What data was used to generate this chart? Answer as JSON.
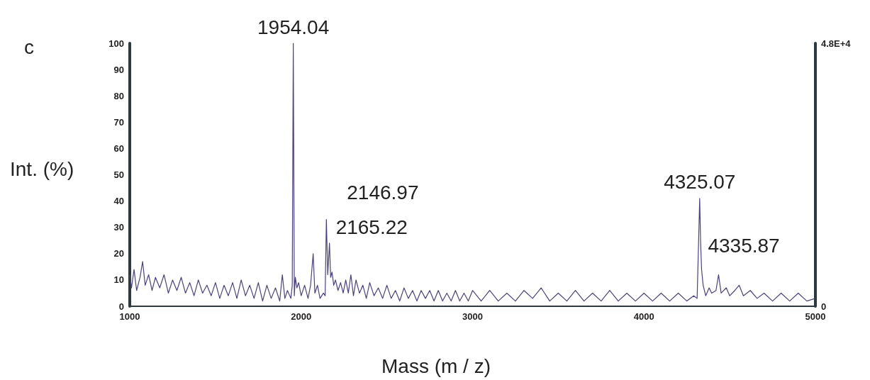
{
  "chart_data": {
    "type": "line",
    "xlabel": "Mass (m / z)",
    "ylabel": "Int. (%)",
    "annotations": [
      "c",
      {
        "text": "1954.04",
        "x": 1954,
        "y": 100
      },
      {
        "text": "2146.97",
        "x": 2147,
        "y": 33
      },
      {
        "text": "2165.22",
        "x": 2165,
        "y": 24
      },
      {
        "text": "4325.07",
        "x": 4325,
        "y": 41
      },
      {
        "text": "4335.87",
        "x": 4336,
        "y": 14
      }
    ],
    "x": [
      1000,
      1010,
      1025,
      1040,
      1060,
      1075,
      1090,
      1110,
      1130,
      1150,
      1175,
      1200,
      1225,
      1250,
      1275,
      1300,
      1325,
      1350,
      1375,
      1400,
      1425,
      1450,
      1475,
      1500,
      1525,
      1550,
      1575,
      1600,
      1625,
      1650,
      1675,
      1700,
      1725,
      1750,
      1775,
      1800,
      1825,
      1850,
      1875,
      1890,
      1905,
      1920,
      1940,
      1948,
      1954,
      1960,
      1966,
      1975,
      1985,
      2000,
      2020,
      2040,
      2055,
      2070,
      2080,
      2095,
      2110,
      2130,
      2140,
      2147,
      2155,
      2165,
      2172,
      2180,
      2190,
      2200,
      2215,
      2230,
      2245,
      2260,
      2275,
      2290,
      2305,
      2320,
      2340,
      2360,
      2380,
      2400,
      2425,
      2450,
      2475,
      2500,
      2525,
      2550,
      2575,
      2600,
      2625,
      2650,
      2675,
      2700,
      2725,
      2750,
      2775,
      2800,
      2825,
      2850,
      2875,
      2900,
      2925,
      2950,
      2975,
      3000,
      3050,
      3100,
      3150,
      3200,
      3250,
      3300,
      3350,
      3400,
      3450,
      3500,
      3550,
      3600,
      3650,
      3700,
      3750,
      3800,
      3850,
      3900,
      3950,
      4000,
      4050,
      4100,
      4150,
      4200,
      4250,
      4290,
      4310,
      4325,
      4330,
      4336,
      4345,
      4360,
      4380,
      4395,
      4420,
      4435,
      4450,
      4480,
      4500,
      4530,
      4555,
      4580,
      4620,
      4660,
      4700,
      4750,
      4800,
      4850,
      4900,
      4950,
      5000
    ],
    "series": [
      {
        "color": "#4b3f8a",
        "values": [
          12,
          7,
          14,
          6,
          11,
          17,
          8,
          12,
          6,
          11,
          7,
          12,
          5,
          10,
          6,
          11,
          5,
          9,
          4,
          10,
          5,
          8,
          4,
          9,
          3,
          8,
          4,
          9,
          3,
          10,
          4,
          8,
          3,
          9,
          2,
          8,
          3,
          7,
          2,
          12,
          3,
          6,
          3,
          8,
          100,
          4,
          11,
          7,
          9,
          4,
          8,
          3,
          8,
          20,
          5,
          8,
          3,
          5,
          4,
          33,
          12,
          24,
          11,
          13,
          8,
          10,
          6,
          9,
          5,
          10,
          5,
          12,
          4,
          10,
          5,
          8,
          3,
          9,
          4,
          7,
          3,
          8,
          3,
          6,
          2,
          7,
          3,
          6,
          2,
          6,
          3,
          6,
          2,
          6,
          2,
          5,
          2,
          6,
          2,
          5,
          2,
          6,
          2,
          6,
          2,
          5,
          2,
          6,
          3,
          7,
          2,
          5,
          2,
          6,
          2,
          5,
          2,
          6,
          2,
          5,
          2,
          5,
          2,
          5,
          2,
          5,
          2,
          4,
          3,
          41,
          25,
          14,
          8,
          4,
          7,
          5,
          6,
          12,
          5,
          7,
          4,
          6,
          8,
          4,
          6,
          3,
          5,
          2,
          5,
          2,
          5,
          2,
          3
        ]
      }
    ],
    "xlim": [
      1000,
      5000
    ],
    "xticks": [
      1000,
      2000,
      3000,
      4000,
      5000
    ],
    "ylim": [
      0,
      100
    ],
    "yticks": [
      0,
      10,
      20,
      30,
      40,
      50,
      60,
      70,
      80,
      90,
      100
    ],
    "y2lim": [
      0,
      48000
    ],
    "y2ticks": [
      {
        "value": 0,
        "label": "0"
      },
      {
        "value": 48000,
        "label": "4.8E+4"
      }
    ],
    "marker": "none",
    "line_style": "solid"
  }
}
